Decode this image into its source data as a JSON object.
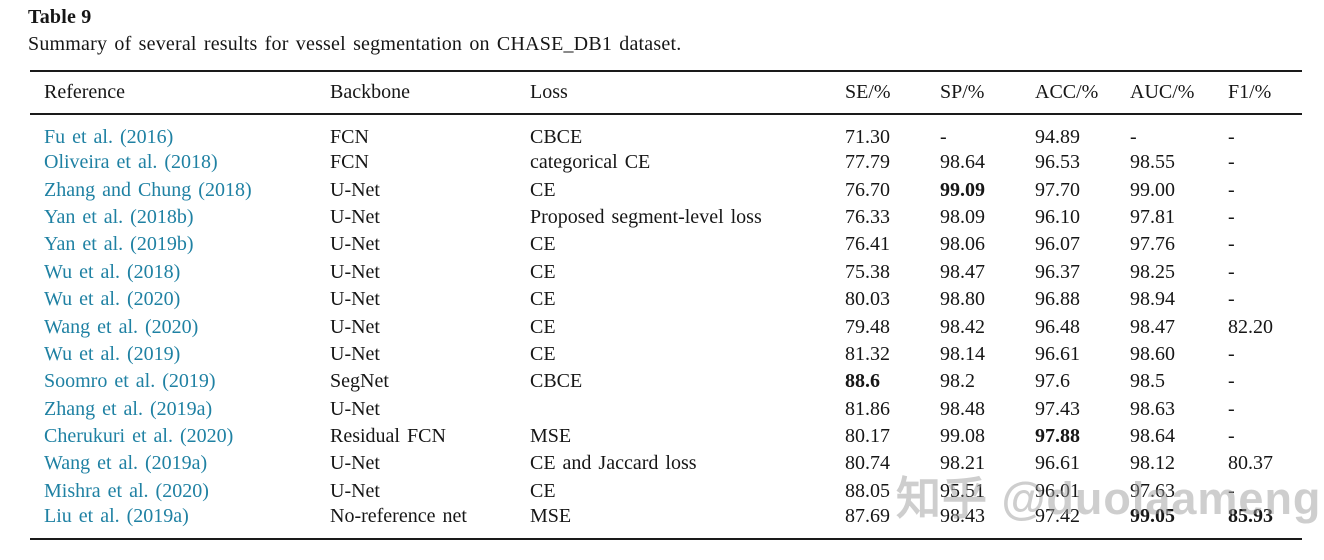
{
  "page": {
    "title": "Table 9",
    "caption": "Summary of several results for vessel segmentation on CHASE_DB1 dataset.",
    "watermark": "知乎 @duolaameng"
  },
  "colors": {
    "text": "#161616",
    "rule": "#1a1a1a",
    "link": "#1f81a3",
    "watermark": "#9e9e9e"
  },
  "table": {
    "columns": [
      {
        "key": "reference",
        "label": "Reference"
      },
      {
        "key": "backbone",
        "label": "Backbone"
      },
      {
        "key": "loss",
        "label": "Loss"
      },
      {
        "key": "se",
        "label": "SE/%"
      },
      {
        "key": "sp",
        "label": "SP/%"
      },
      {
        "key": "acc",
        "label": "ACC/%"
      },
      {
        "key": "auc",
        "label": "AUC/%"
      },
      {
        "key": "f1",
        "label": "F1/%"
      }
    ],
    "rows": [
      {
        "reference": "Fu et al. (2016)",
        "backbone": "FCN",
        "loss": "CBCE",
        "se": "71.30",
        "sp": "-",
        "acc": "94.89",
        "auc": "-",
        "f1": "-",
        "bold": []
      },
      {
        "reference": "Oliveira et al. (2018)",
        "backbone": "FCN",
        "loss": "categorical CE",
        "se": "77.79",
        "sp": "98.64",
        "acc": "96.53",
        "auc": "98.55",
        "f1": "-",
        "bold": []
      },
      {
        "reference": "Zhang and Chung (2018)",
        "backbone": "U-Net",
        "loss": "CE",
        "se": "76.70",
        "sp": "99.09",
        "acc": "97.70",
        "auc": "99.00",
        "f1": "-",
        "bold": [
          "sp"
        ]
      },
      {
        "reference": "Yan et al. (2018b)",
        "backbone": "U-Net",
        "loss": "Proposed segment-level loss",
        "se": "76.33",
        "sp": "98.09",
        "acc": "96.10",
        "auc": "97.81",
        "f1": "-",
        "bold": []
      },
      {
        "reference": "Yan et al. (2019b)",
        "backbone": "U-Net",
        "loss": "CE",
        "se": "76.41",
        "sp": "98.06",
        "acc": "96.07",
        "auc": "97.76",
        "f1": "-",
        "bold": []
      },
      {
        "reference": "Wu et al. (2018)",
        "backbone": "U-Net",
        "loss": "CE",
        "se": "75.38",
        "sp": "98.47",
        "acc": "96.37",
        "auc": "98.25",
        "f1": "-",
        "bold": []
      },
      {
        "reference": "Wu et al. (2020)",
        "backbone": "U-Net",
        "loss": "CE",
        "se": "80.03",
        "sp": "98.80",
        "acc": "96.88",
        "auc": "98.94",
        "f1": "-",
        "bold": []
      },
      {
        "reference": "Wang et al. (2020)",
        "backbone": "U-Net",
        "loss": "CE",
        "se": "79.48",
        "sp": "98.42",
        "acc": "96.48",
        "auc": "98.47",
        "f1": "82.20",
        "bold": []
      },
      {
        "reference": "Wu et al. (2019)",
        "backbone": "U-Net",
        "loss": "CE",
        "se": "81.32",
        "sp": "98.14",
        "acc": "96.61",
        "auc": "98.60",
        "f1": "-",
        "bold": []
      },
      {
        "reference": "Soomro et al. (2019)",
        "backbone": "SegNet",
        "loss": "CBCE",
        "se": "88.6",
        "sp": "98.2",
        "acc": "97.6",
        "auc": "98.5",
        "f1": "-",
        "bold": [
          "se"
        ]
      },
      {
        "reference": "Zhang et al. (2019a)",
        "backbone": "U-Net",
        "loss": "",
        "se": "81.86",
        "sp": "98.48",
        "acc": "97.43",
        "auc": "98.63",
        "f1": "-",
        "bold": []
      },
      {
        "reference": "Cherukuri et al. (2020)",
        "backbone": "Residual FCN",
        "loss": "MSE",
        "se": "80.17",
        "sp": "99.08",
        "acc": "97.88",
        "auc": "98.64",
        "f1": "-",
        "bold": [
          "acc"
        ]
      },
      {
        "reference": "Wang et al. (2019a)",
        "backbone": "U-Net",
        "loss": "CE and Jaccard loss",
        "se": "80.74",
        "sp": "98.21",
        "acc": "96.61",
        "auc": "98.12",
        "f1": "80.37",
        "bold": []
      },
      {
        "reference": "Mishra et al. (2020)",
        "backbone": "U-Net",
        "loss": "CE",
        "se": "88.05",
        "sp": "95.51",
        "acc": "96.01",
        "auc": "97.63",
        "f1": "-",
        "bold": []
      },
      {
        "reference": "Liu et al. (2019a)",
        "backbone": "No-reference net",
        "loss": "MSE",
        "se": "87.69",
        "sp": "98.43",
        "acc": "97.42",
        "auc": "99.05",
        "f1": "85.93",
        "bold": [
          "auc",
          "f1"
        ]
      }
    ]
  }
}
